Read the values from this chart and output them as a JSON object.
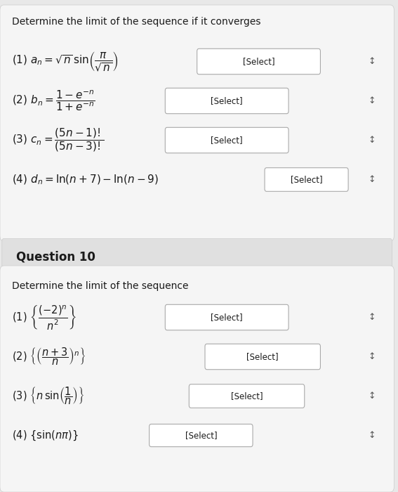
{
  "bg_color": "#e8e8e8",
  "section1_title": "Determine the limit of the sequence if it converges",
  "section2_header": "Question 10",
  "section2_title": "Determine the limit of the sequence",
  "items_section1": [
    {
      "label": "(1) $a_n = \\sqrt{n}\\,\\sin\\!\\left(\\dfrac{\\pi}{\\sqrt{n}}\\right)$",
      "select": "[Select]"
    },
    {
      "label": "(2) $b_n = \\dfrac{1-e^{-n}}{1+e^{-n}}$",
      "select": "[Select]"
    },
    {
      "label": "(3) $c_n = \\dfrac{(5n-1)!}{(5n-3)!}$",
      "select": "[Select]"
    },
    {
      "label": "(4) $d_n = \\ln(n+7) - \\ln(n-9)$",
      "select": "[Select]"
    }
  ],
  "items_section2": [
    {
      "label": "(1) $\\left\\{\\dfrac{(-2)^n}{n^2}\\right\\}$",
      "select": "[Select]"
    },
    {
      "label": "(2) $\\left\\{\\left(\\dfrac{n+3}{n}\\right)^n\\right\\}$",
      "select": "[Select]"
    },
    {
      "label": "(3) $\\left\\{n\\,\\sin\\!\\left(\\dfrac{1}{n}\\right)\\right\\}$",
      "select": "[Select]"
    },
    {
      "label": "(4) $\\left\\{\\sin(n\\pi)\\right\\}$",
      "select": "[Select]"
    }
  ],
  "select_box_color": "#ffffff",
  "select_box_border": "#aaaaaa",
  "section_header_bg": "#f0f0f0",
  "text_color": "#1a1a1a",
  "arrow_color": "#555555"
}
